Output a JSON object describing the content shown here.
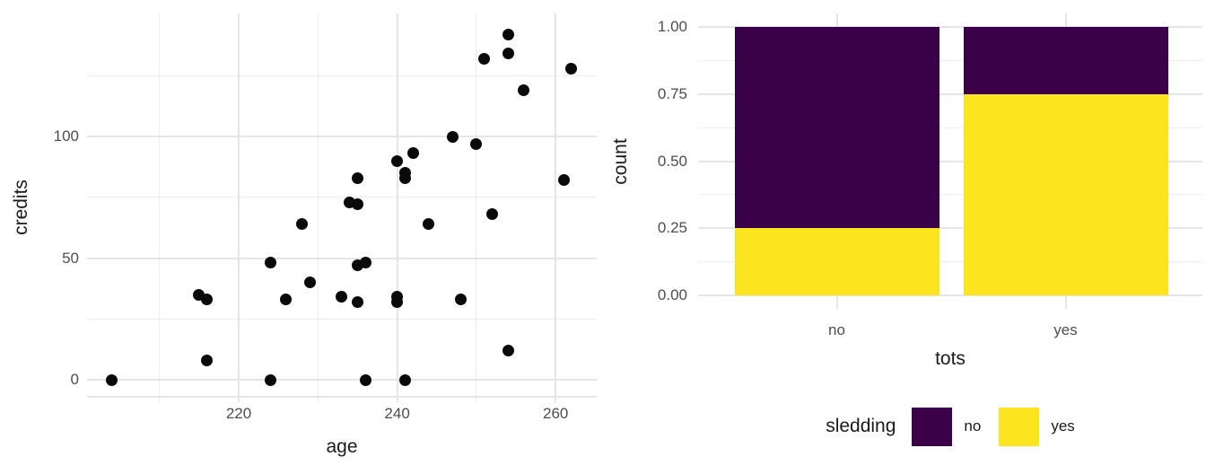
{
  "figure": {
    "description": "two ggplot-style charts side by side on white background",
    "background": "#ffffff"
  },
  "colors": {
    "point_black": "#0a0a0a",
    "viridis_purple_no": "#3B0148",
    "viridis_yellow_yes": "#FCE41F",
    "gridline_major": "#E5E5E5",
    "gridline_minor": "#EEEEEE",
    "tick_label_gray": "#4d4d4d",
    "axis_title_color": "#1a1a1a"
  },
  "chart_data": [
    {
      "type": "scatter",
      "title": "",
      "xlabel": "age",
      "ylabel": "credits",
      "grid": true,
      "xlim": [
        201,
        265
      ],
      "ylim": [
        -7,
        150
      ],
      "x_ticks": [
        {
          "value": 220,
          "label": "220"
        },
        {
          "value": 240,
          "label": "240"
        },
        {
          "value": 260,
          "label": "260"
        }
      ],
      "x_minor_gridlines": [
        210,
        230,
        250
      ],
      "y_ticks": [
        {
          "value": 0,
          "label": "0"
        },
        {
          "value": 50,
          "label": "50"
        },
        {
          "value": 100,
          "label": "100"
        }
      ],
      "y_minor_gridlines": [
        25,
        75,
        125
      ],
      "points": [
        [
          204,
          0
        ],
        [
          216,
          8
        ],
        [
          215,
          35
        ],
        [
          216,
          33
        ],
        [
          224,
          0
        ],
        [
          224,
          48
        ],
        [
          226,
          33
        ],
        [
          229,
          40
        ],
        [
          228,
          64
        ],
        [
          233,
          34
        ],
        [
          234,
          73
        ],
        [
          235,
          72
        ],
        [
          235,
          83
        ],
        [
          235,
          47
        ],
        [
          236,
          48
        ],
        [
          235,
          32
        ],
        [
          236,
          0
        ],
        [
          240,
          90
        ],
        [
          241,
          85
        ],
        [
          241,
          83
        ],
        [
          240,
          34
        ],
        [
          240,
          32
        ],
        [
          241,
          0
        ],
        [
          242,
          93
        ],
        [
          244,
          64
        ],
        [
          247,
          100
        ],
        [
          248,
          33
        ],
        [
          250,
          97
        ],
        [
          251,
          132
        ],
        [
          252,
          68
        ],
        [
          254,
          142
        ],
        [
          254,
          134
        ],
        [
          254,
          12
        ],
        [
          256,
          119
        ],
        [
          261,
          82
        ],
        [
          262,
          128
        ]
      ]
    },
    {
      "type": "bar",
      "stacked": true,
      "position": "fill",
      "title": "",
      "xlabel": "tots",
      "ylabel": "count",
      "categories": [
        "no",
        "yes"
      ],
      "series": [
        {
          "name": "no",
          "color": "#3B0148",
          "values": [
            0.75,
            0.25
          ]
        },
        {
          "name": "yes",
          "color": "#FCE41F",
          "values": [
            0.25,
            0.75
          ]
        }
      ],
      "y_ticks": [
        {
          "value": 0.0,
          "label": "0.00"
        },
        {
          "value": 0.25,
          "label": "0.25"
        },
        {
          "value": 0.5,
          "label": "0.50"
        },
        {
          "value": 0.75,
          "label": "0.75"
        },
        {
          "value": 1.0,
          "label": "1.00"
        }
      ],
      "y_minor_gridlines": [
        0.125,
        0.375,
        0.625,
        0.875
      ],
      "ylim": [
        0,
        1
      ],
      "legend": {
        "title": "sledding",
        "position": "bottom",
        "entries": [
          "no",
          "yes"
        ]
      }
    }
  ]
}
